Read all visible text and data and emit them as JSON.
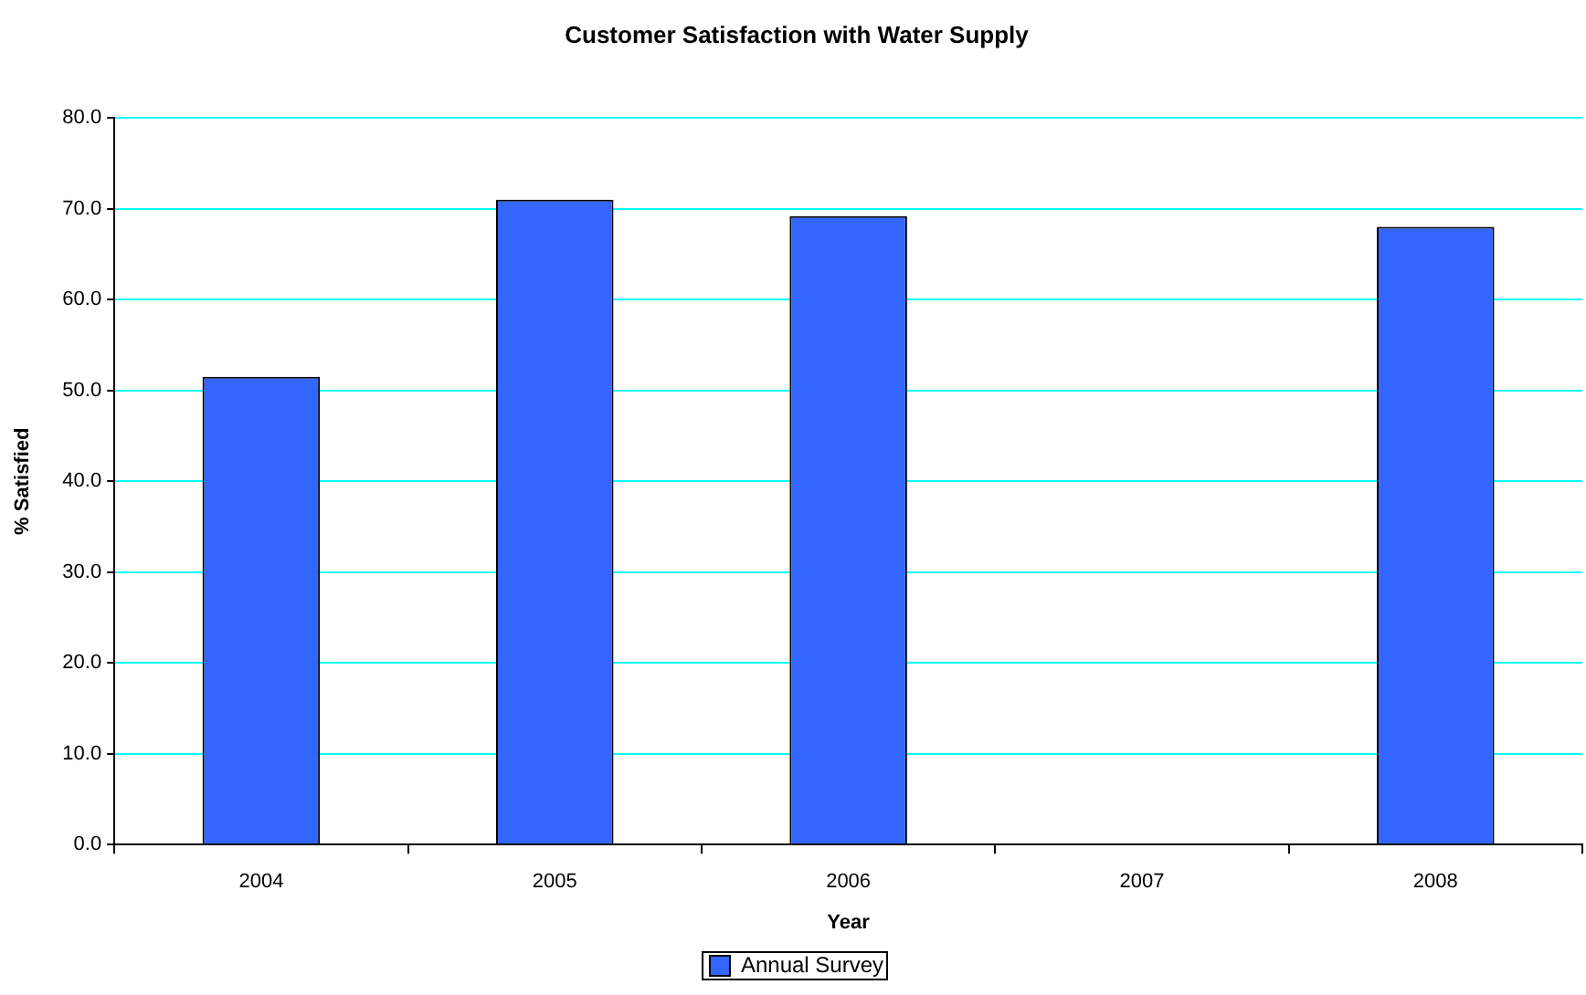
{
  "chart_data": {
    "type": "bar",
    "title": "Customer Satisfaction with Water Supply",
    "xlabel": "Year",
    "ylabel": "% Satisfied",
    "categories": [
      "2004",
      "2005",
      "2006",
      "2007",
      "2008"
    ],
    "series": [
      {
        "name": "Annual Survey",
        "color": "#3366ff",
        "values": [
          51.5,
          71.0,
          69.2,
          null,
          68.0
        ]
      }
    ],
    "ylim": [
      0,
      80
    ],
    "yticks": [
      {
        "value": 0,
        "label": "0.0"
      },
      {
        "value": 10,
        "label": "10.0"
      },
      {
        "value": 20,
        "label": "20.0"
      },
      {
        "value": 30,
        "label": "30.0"
      },
      {
        "value": 40,
        "label": "40.0"
      },
      {
        "value": 50,
        "label": "50.0"
      },
      {
        "value": 60,
        "label": "60.0"
      },
      {
        "value": 70,
        "label": "70.0"
      },
      {
        "value": 80,
        "label": "80.0"
      }
    ],
    "grid": "y",
    "legend": "bottom"
  }
}
